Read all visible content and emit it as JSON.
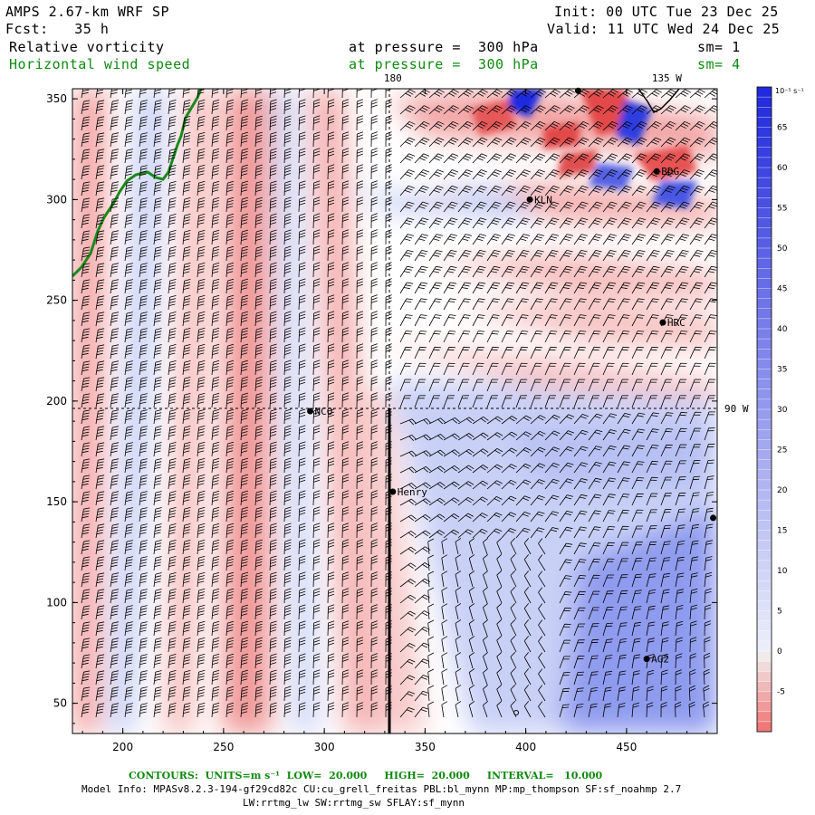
{
  "header": {
    "model": "AMPS 2.67-km WRF SP",
    "forecast": "Fcst:   35 h",
    "init": "Init: 00 UTC Tue 23 Dec 25",
    "valid": "Valid: 11 UTC Wed 24 Dec 25",
    "field1": "Relative vorticity",
    "field1_level": "at pressure =  300 hPa",
    "field1_sm": "sm= 1",
    "field2": "Horizontal wind speed",
    "field2_level": "at pressure =  300 hPa",
    "field2_sm": "sm= 4"
  },
  "footer": {
    "contours": "CONTOURS:  UNITS=m s⁻¹  LOW=  20.000     HIGH=  20.000     INTERVAL=   10.000",
    "model_info": "Model Info: MPASv8.2.3-194-gf29cd82c CU:cu_grell_freitas PBL:bl_mynn MP:mp_thompson SF:sf_noahmp 2.7",
    "model_info2": "LW:rrtmg_lw SW:rrtmg_sw SFLAY:sf_mynn"
  },
  "colors": {
    "positive": "#e84c4c",
    "negative": "#1f2fd6",
    "coast": "#1a8a1a",
    "grid": "#000000"
  },
  "chart_data": {
    "type": "heatmap",
    "xlim": [
      175,
      495
    ],
    "ylim": [
      35,
      355
    ],
    "xticks": [
      "200",
      "250",
      "300",
      "350",
      "400",
      "450"
    ],
    "yticks": [
      "50",
      "100",
      "150",
      "200",
      "250",
      "300",
      "350"
    ],
    "xtick_values": [
      200,
      250,
      300,
      350,
      400,
      450
    ],
    "ytick_values": [
      50,
      100,
      150,
      200,
      250,
      300,
      350
    ],
    "meridian_labels": [
      {
        "text": "180",
        "x": 334,
        "y": 355
      },
      {
        "text": "135 W",
        "x": 470,
        "y": 355
      },
      {
        "text": "90 W",
        "x": 495,
        "y": 195
      }
    ],
    "stations": [
      {
        "name": "NCO",
        "x": 293,
        "y": 195
      },
      {
        "name": "Henry",
        "x": 334,
        "y": 155
      },
      {
        "name": "KLN",
        "x": 402,
        "y": 300
      },
      {
        "name": "BDG",
        "x": 465,
        "y": 314
      },
      {
        "name": "HRC",
        "x": 468,
        "y": 239
      },
      {
        "name": "AG2",
        "x": 460,
        "y": 72
      },
      {
        "name": "",
        "x": 493,
        "y": 142
      },
      {
        "name": "",
        "x": 426,
        "y": 354
      }
    ],
    "colorbar": {
      "unit": "10⁻⁵ s⁻¹",
      "labels": [
        "65",
        "60",
        "55",
        "50",
        "45",
        "40",
        "35",
        "30",
        "25",
        "20",
        "15",
        "10",
        "5",
        "0",
        "-5"
      ],
      "values": [
        65,
        60,
        55,
        50,
        45,
        40,
        35,
        30,
        25,
        20,
        15,
        10,
        5,
        0,
        -5
      ],
      "min": -10,
      "max": 70
    }
  }
}
